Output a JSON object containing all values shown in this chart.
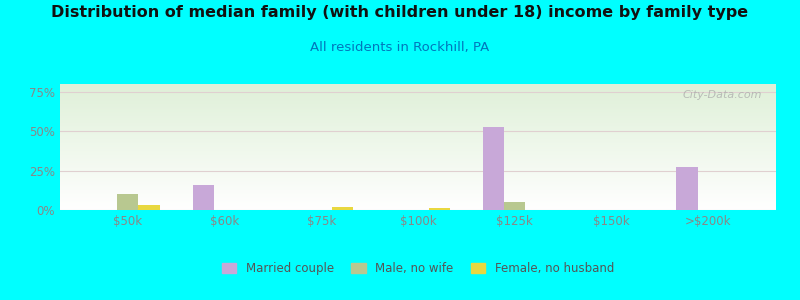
{
  "title": "Distribution of median family (with children under 18) income by family type",
  "subtitle": "All residents in Rockhill, PA",
  "title_fontsize": 11.5,
  "subtitle_fontsize": 9.5,
  "background_color": "#00FFFF",
  "plot_bg_top": "#dff0d8",
  "plot_bg_bottom": "#ffffff",
  "categories": [
    "$50k",
    "$60k",
    "$75k",
    "$100k",
    "$125k",
    "$150k",
    ">$200k"
  ],
  "married_couple": [
    0,
    16,
    0,
    0,
    53,
    0,
    27
  ],
  "male_no_wife": [
    10,
    0,
    0,
    0,
    5,
    0,
    0
  ],
  "female_no_husband": [
    3,
    0,
    2,
    1,
    0,
    0,
    0
  ],
  "married_color": "#c8a8d8",
  "male_color": "#b8c890",
  "female_color": "#e8d840",
  "ylabel_ticks": [
    "0%",
    "25%",
    "50%",
    "75%"
  ],
  "ylabel_values": [
    0,
    25,
    50,
    75
  ],
  "ylim": [
    0,
    80
  ],
  "bar_width": 0.22,
  "watermark": "City-Data.com",
  "gridline_color": "#e0d0d0",
  "axis_color": "#888888",
  "tick_fontsize": 8.5
}
